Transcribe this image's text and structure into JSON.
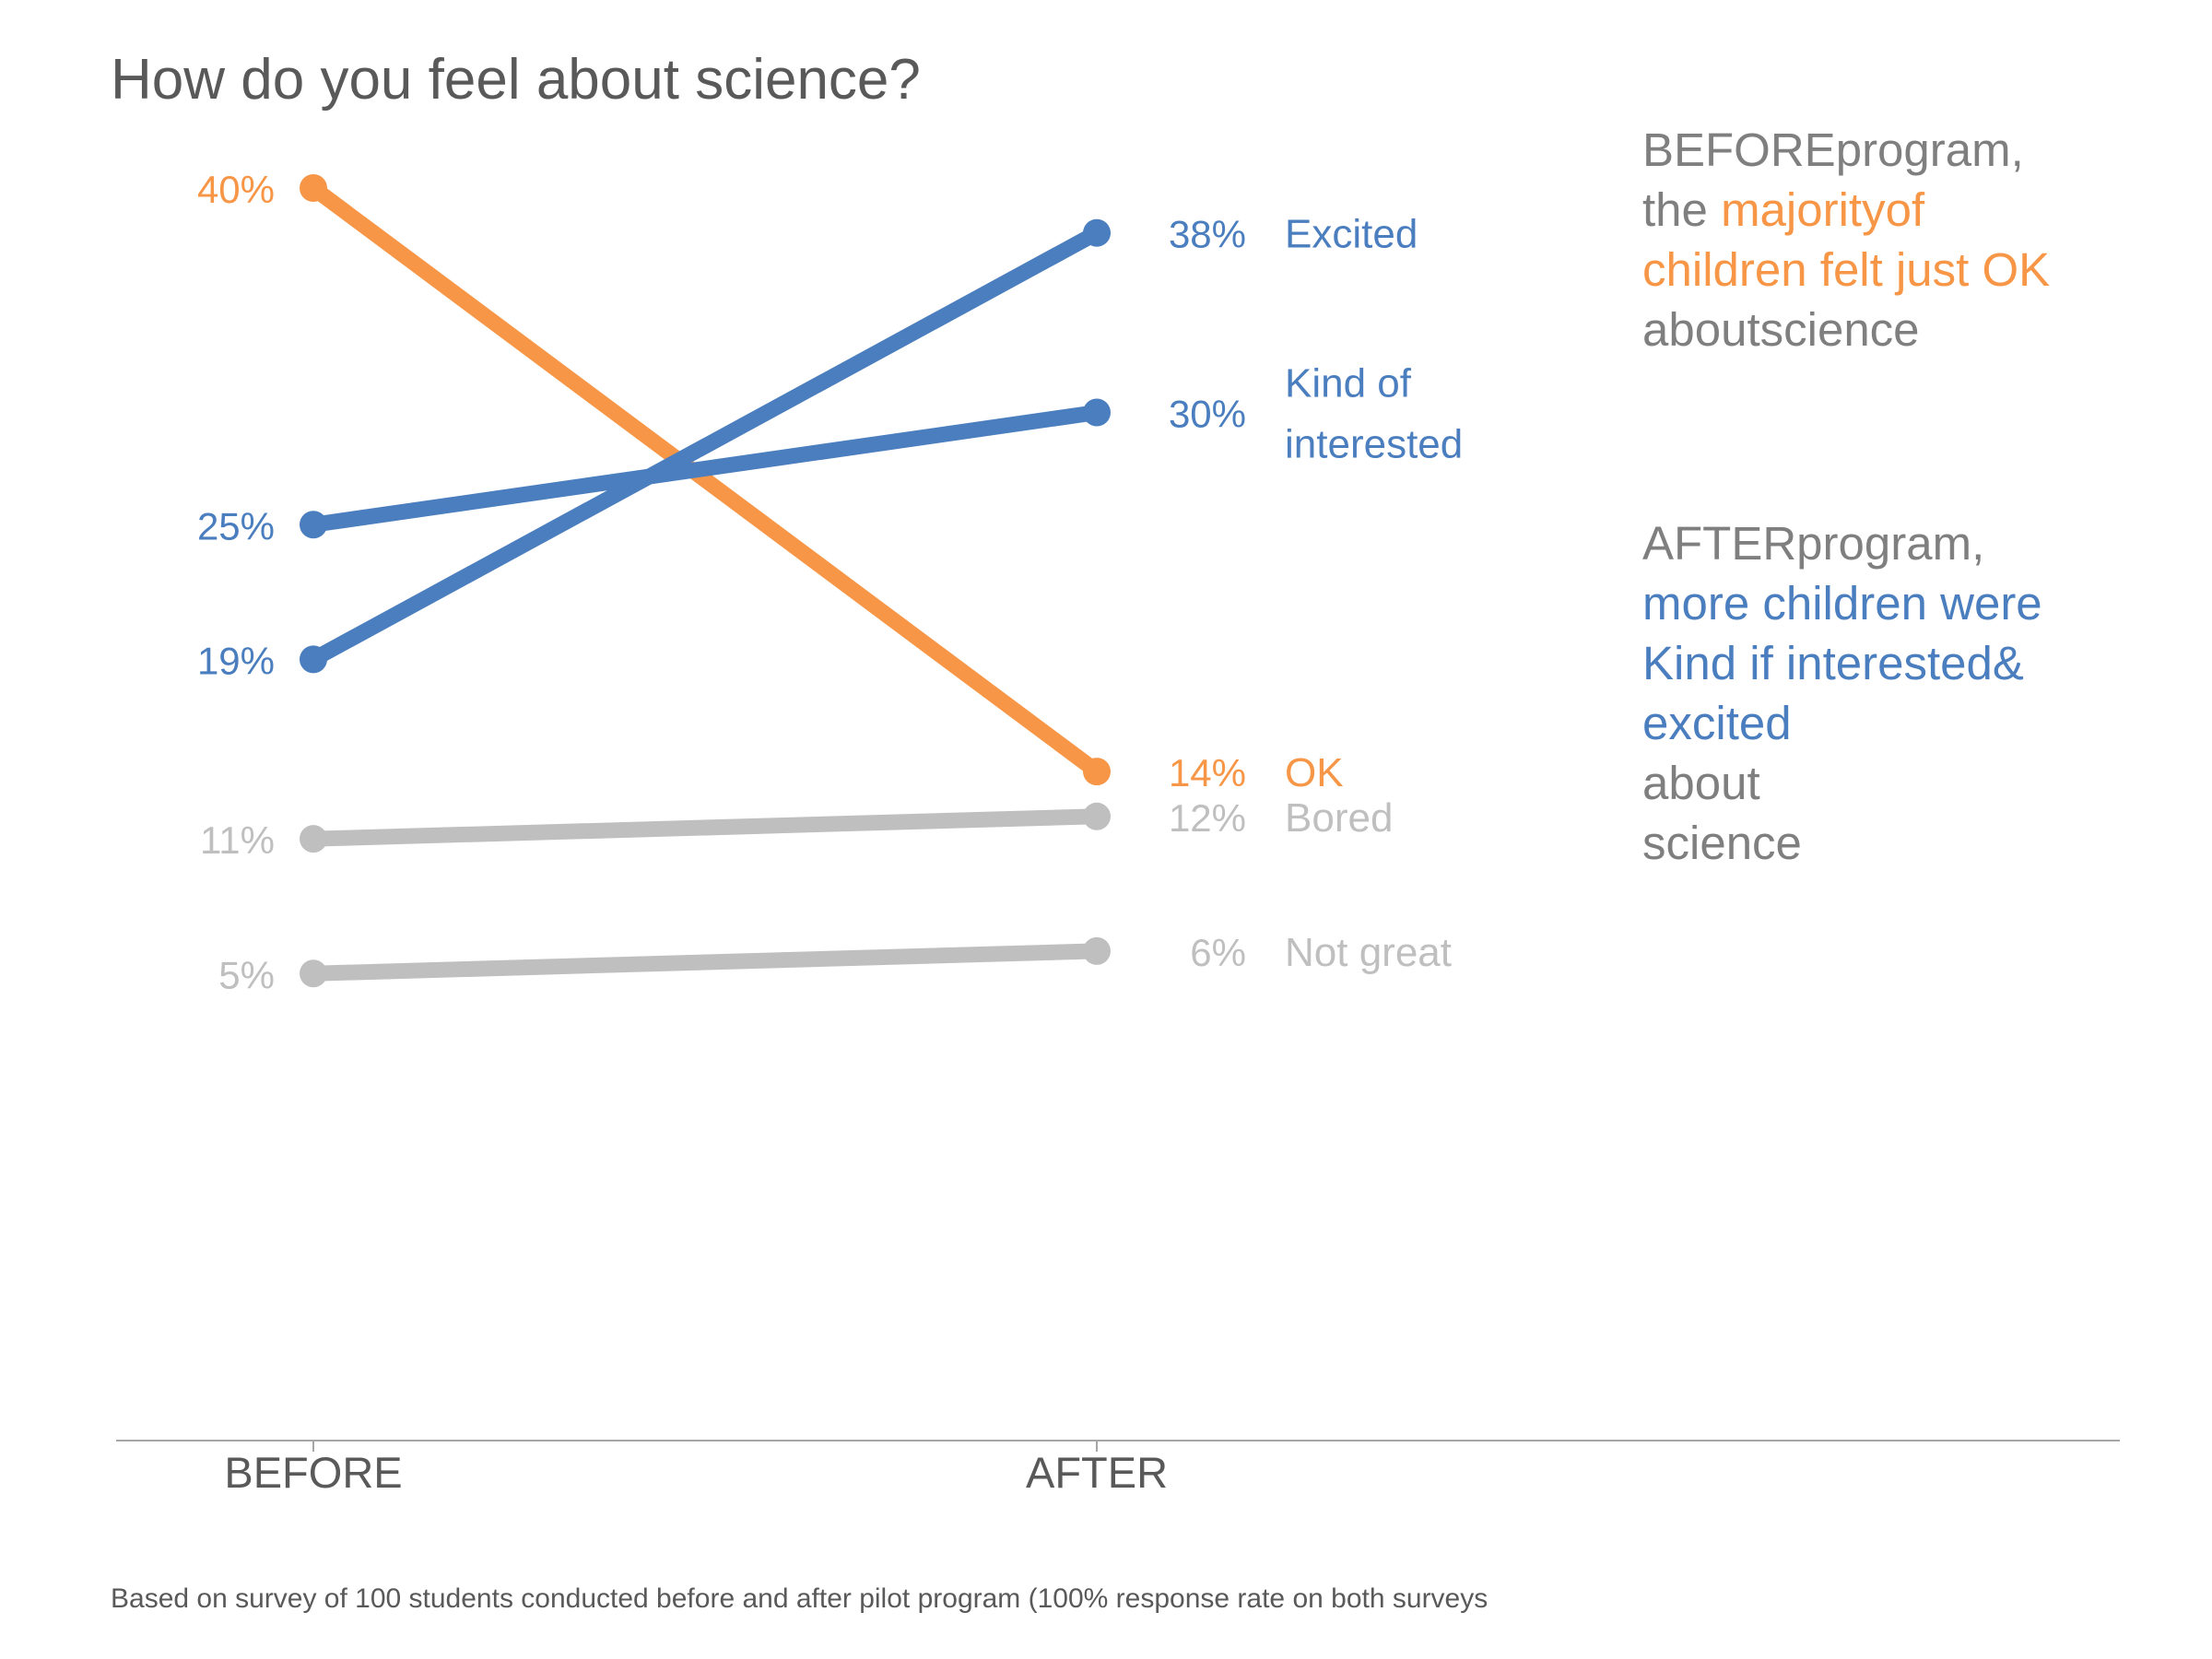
{
  "chart_data": {
    "type": "line",
    "title": "How do you feel about science?",
    "categories": [
      "BEFORE",
      "AFTER"
    ],
    "xlabel": "",
    "ylabel": "",
    "unit": "%",
    "ylim": [
      0,
      45
    ],
    "grid": false,
    "legend": "none",
    "series": [
      {
        "name": "Excited",
        "values": [
          19,
          38
        ],
        "labels": [
          "19%",
          "38%"
        ],
        "color": "#4a7ebf"
      },
      {
        "name": "Kind of interested",
        "label_lines": [
          "Kind of",
          "interested"
        ],
        "values": [
          25,
          30
        ],
        "labels": [
          "25%",
          "30%"
        ],
        "color": "#4a7ebf"
      },
      {
        "name": "OK",
        "values": [
          40,
          14
        ],
        "labels": [
          "40%",
          "14%"
        ],
        "color": "#f79646"
      },
      {
        "name": "Bored",
        "values": [
          11,
          12
        ],
        "labels": [
          "11%",
          "12%"
        ],
        "color": "#bfbfbf"
      },
      {
        "name": "Not great",
        "values": [
          5,
          6
        ],
        "labels": [
          "5%",
          "6%"
        ],
        "color": "#bfbfbf"
      }
    ],
    "footnote": "Based on survey of 100 students conducted before and after pilot program (100% response rate on both surveys"
  },
  "colors": {
    "title": "#595959",
    "axis_label": "#595959",
    "axis_line": "#a6a6a6",
    "annotation_gray": "#7f7f7f",
    "blue": "#4a7ebf",
    "orange": "#f79646",
    "light_gray": "#bfbfbf"
  },
  "annotations": {
    "before": [
      [
        {
          "text": "BEFOREprogram,",
          "color": "gray"
        }
      ],
      [
        {
          "text": "the ",
          "color": "gray"
        },
        {
          "text": "majorityof",
          "color": "orange"
        }
      ],
      [
        {
          "text": "children felt just OK",
          "color": "orange"
        }
      ],
      [
        {
          "text": "aboutscience",
          "color": "gray"
        }
      ]
    ],
    "after": [
      [
        {
          "text": "AFTERprogram,",
          "color": "gray"
        }
      ],
      [
        {
          "text": "more children were",
          "color": "blue"
        }
      ],
      [
        {
          "text": "Kind if interested&",
          "color": "blue"
        }
      ],
      [
        {
          "text": "excited",
          "color": "blue"
        }
      ],
      [
        {
          "text": "about",
          "color": "gray"
        }
      ],
      [
        {
          "text": "science",
          "color": "gray"
        }
      ]
    ]
  }
}
